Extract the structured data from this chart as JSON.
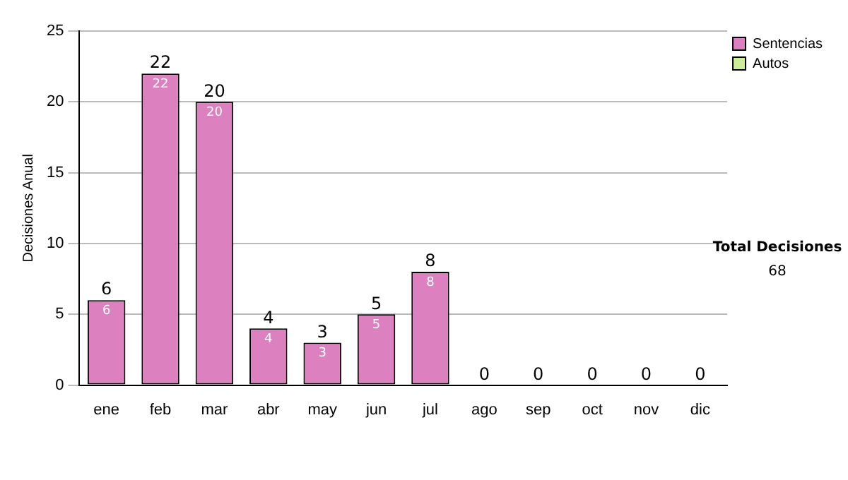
{
  "chart_data": {
    "type": "bar",
    "stacked": true,
    "ylabel": "Decisiones Anual",
    "categories": [
      "ene",
      "feb",
      "mar",
      "abr",
      "may",
      "jun",
      "jul",
      "ago",
      "sep",
      "oct",
      "nov",
      "dic"
    ],
    "series": [
      {
        "name": "Sentencias",
        "color": "#dd80c0",
        "values": [
          6,
          22,
          20,
          4,
          3,
          5,
          8,
          0,
          0,
          0,
          0,
          0
        ],
        "value_labels": [
          "6",
          "22",
          "20",
          "4",
          "3",
          "5",
          "8",
          null,
          null,
          null,
          null,
          null
        ]
      },
      {
        "name": "Autos",
        "color": "#ccee99",
        "values": [
          0,
          0,
          0,
          0,
          0,
          0,
          0,
          0,
          0,
          0,
          0,
          0
        ]
      }
    ],
    "totals": [
      "6",
      "22",
      "20",
      "4",
      "3",
      "5",
      "8",
      "0",
      "0",
      "0",
      "0",
      "0"
    ],
    "ylim": [
      0,
      25
    ],
    "yticks": [
      0,
      5,
      10,
      15,
      20,
      25
    ],
    "grid": "y",
    "legend": "right",
    "annotations": [
      "Total Decisiones",
      "68"
    ]
  }
}
